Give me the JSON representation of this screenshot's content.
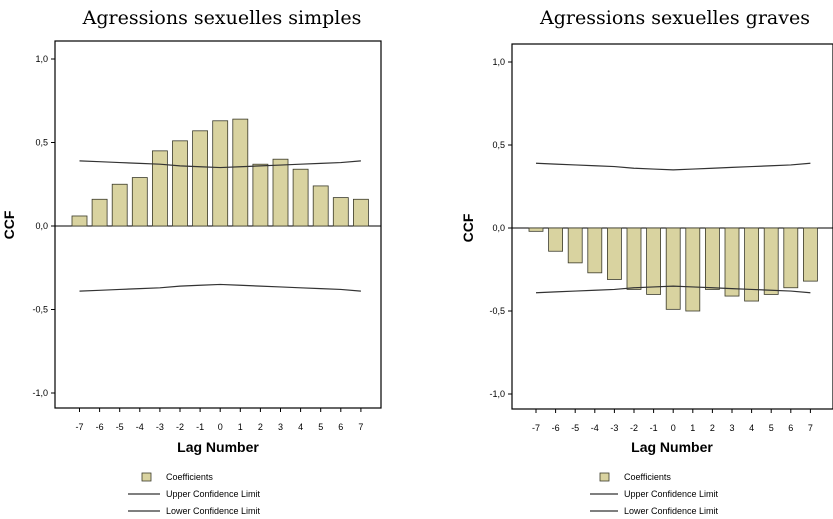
{
  "colors": {
    "bar_fill": "#d9d3a0",
    "bar_stroke": "#3a3a2a",
    "line": "#333333"
  },
  "legend": {
    "coefficients": "Coefficients",
    "upper": "Upper Confidence Limit",
    "lower": "Lower Confidence Limit"
  },
  "chart_data": [
    {
      "type": "bar",
      "title": "Agressions sexuelles simples",
      "xlabel": "Lag Number",
      "ylabel": "CCF",
      "ylim": [
        -1.1,
        1.1
      ],
      "yticks": [
        "1,0",
        "0,5",
        "0,0",
        "-0,5",
        "-1,0"
      ],
      "categories": [
        "-7",
        "-6",
        "-5",
        "-4",
        "-3",
        "-2",
        "-1",
        "0",
        "1",
        "2",
        "3",
        "4",
        "5",
        "6",
        "7"
      ],
      "series": [
        {
          "name": "Coefficients",
          "values": [
            0.06,
            0.16,
            0.25,
            0.29,
            0.45,
            0.51,
            0.57,
            0.63,
            0.64,
            0.37,
            0.4,
            0.34,
            0.24,
            0.17,
            0.16
          ]
        },
        {
          "name": "Upper Confidence Limit",
          "values": [
            0.39,
            0.385,
            0.38,
            0.375,
            0.37,
            0.36,
            0.355,
            0.35,
            0.355,
            0.36,
            0.365,
            0.37,
            0.375,
            0.38,
            0.39
          ]
        },
        {
          "name": "Lower Confidence Limit",
          "values": [
            -0.39,
            -0.385,
            -0.38,
            -0.375,
            -0.37,
            -0.36,
            -0.355,
            -0.35,
            -0.355,
            -0.36,
            -0.365,
            -0.37,
            -0.375,
            -0.38,
            -0.39
          ]
        }
      ]
    },
    {
      "type": "bar",
      "title": "Agressions sexuelles graves",
      "xlabel": "Lag Number",
      "ylabel": "CCF",
      "ylim": [
        -1.1,
        1.1
      ],
      "yticks": [
        "1,0",
        "0,5",
        "0,0",
        "-0,5",
        "-1,0"
      ],
      "categories": [
        "-7",
        "-6",
        "-5",
        "-4",
        "-3",
        "-2",
        "-1",
        "0",
        "1",
        "2",
        "3",
        "4",
        "5",
        "6",
        "7"
      ],
      "series": [
        {
          "name": "Coefficients",
          "values": [
            -0.02,
            -0.14,
            -0.21,
            -0.27,
            -0.31,
            -0.37,
            -0.4,
            -0.49,
            -0.5,
            -0.37,
            -0.41,
            -0.44,
            -0.4,
            -0.36,
            -0.32
          ]
        },
        {
          "name": "Upper Confidence Limit",
          "values": [
            0.39,
            0.385,
            0.38,
            0.375,
            0.37,
            0.36,
            0.355,
            0.35,
            0.355,
            0.36,
            0.365,
            0.37,
            0.375,
            0.38,
            0.39
          ]
        },
        {
          "name": "Lower Confidence Limit",
          "values": [
            -0.39,
            -0.385,
            -0.38,
            -0.375,
            -0.37,
            -0.36,
            -0.355,
            -0.35,
            -0.355,
            -0.36,
            -0.365,
            -0.37,
            -0.375,
            -0.38,
            -0.39
          ]
        }
      ]
    }
  ]
}
